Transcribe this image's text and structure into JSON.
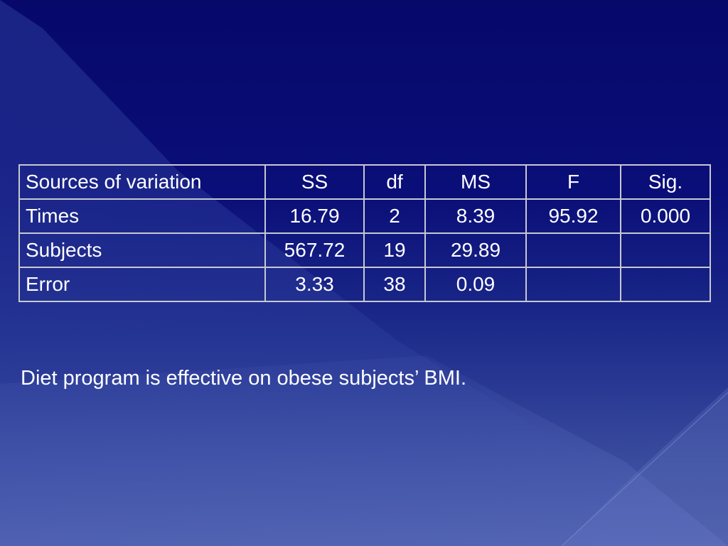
{
  "table": {
    "header": [
      "Sources of variation",
      "SS",
      "df",
      "MS",
      "F",
      "Sig."
    ],
    "rows": [
      [
        "Times",
        "16.79",
        "2",
        "8.39",
        "95.92",
        "0.000"
      ],
      [
        "Subjects",
        "567.72",
        "19",
        "29.89",
        "",
        ""
      ],
      [
        "Error",
        "3.33",
        "38",
        "0.09",
        "",
        ""
      ]
    ]
  },
  "caption": "Diet program is effective on obese subjects’ BMI.",
  "colors": {
    "background_top": "#06086a",
    "background_bottom": "#4a5aa6",
    "text": "#ffffff",
    "table_border": "#c8c8d0"
  }
}
